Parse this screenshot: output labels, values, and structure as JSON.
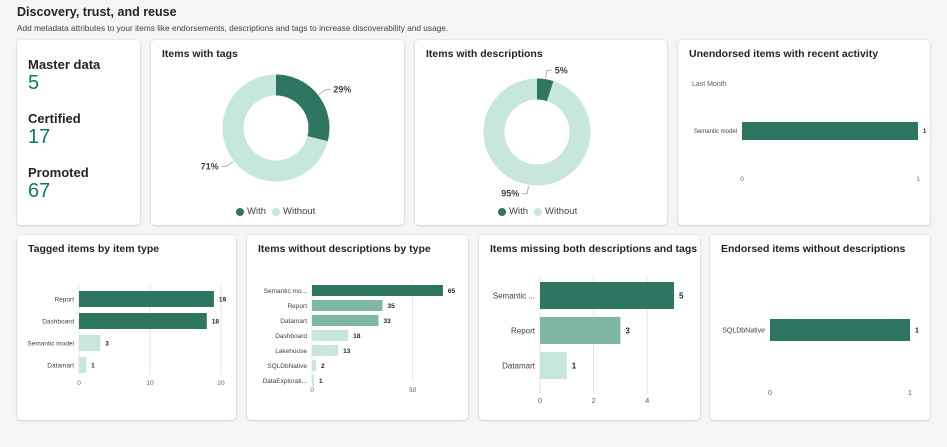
{
  "header": {
    "title": "Discovery, trust, and reuse",
    "subtitle": "Add metadata attributes to your items like endorsements, descriptions and tags to increase discoverability and usage."
  },
  "colors": {
    "dark": "#2e7562",
    "medium": "#7fb7a5",
    "light": "#c7e7dc",
    "axis": "#e0e0e0"
  },
  "stats": [
    {
      "label": "Master data",
      "value": "5"
    },
    {
      "label": "Certified",
      "value": "17"
    },
    {
      "label": "Promoted",
      "value": "67"
    }
  ],
  "cards": {
    "tags": {
      "title": "Items with tags"
    },
    "descriptions": {
      "title": "Items with descriptions"
    },
    "unendorsed": {
      "title": "Unendorsed items with recent activity",
      "subtitle": "Last Month"
    },
    "tagged_by_type": {
      "title": "Tagged items by item type"
    },
    "without_desc_by_type": {
      "title": "Items without descriptions by type"
    },
    "missing_both": {
      "title": "Items missing both descriptions and tags"
    },
    "endorsed_without_desc": {
      "title": "Endorsed items without descriptions"
    }
  },
  "legend": {
    "with": "With",
    "without": "Without"
  },
  "chart_data": [
    {
      "type": "pie",
      "title": "Items with tags",
      "categories": [
        "With",
        "Without"
      ],
      "values": [
        29,
        71
      ],
      "labels": [
        "29%",
        "71%"
      ]
    },
    {
      "type": "pie",
      "title": "Items with descriptions",
      "categories": [
        "With",
        "Without"
      ],
      "values": [
        5,
        95
      ],
      "labels": [
        "5%",
        "95%"
      ]
    },
    {
      "type": "bar",
      "orientation": "horizontal",
      "title": "Unendorsed items with recent activity",
      "subtitle": "Last Month",
      "categories": [
        "Semantic model"
      ],
      "values": [
        1
      ],
      "xlim": [
        0,
        1
      ],
      "ticks": [
        "0",
        "1"
      ]
    },
    {
      "type": "bar",
      "orientation": "horizontal",
      "title": "Tagged items by item type",
      "categories": [
        "Report",
        "Dashboard",
        "Semantic model",
        "Datamart"
      ],
      "values": [
        19,
        18,
        3,
        1
      ],
      "xlim": [
        0,
        20
      ],
      "ticks": [
        "0",
        "10",
        "20"
      ]
    },
    {
      "type": "bar",
      "orientation": "horizontal",
      "title": "Items without descriptions by type",
      "categories": [
        "Semantic mo...",
        "Report",
        "Datamart",
        "Dashboard",
        "Lakehouse",
        "SQLDbNative",
        "DataExplorati..."
      ],
      "values": [
        65,
        35,
        33,
        18,
        13,
        2,
        1
      ],
      "xlim": [
        0,
        70
      ],
      "ticks": [
        "0",
        "50"
      ]
    },
    {
      "type": "bar",
      "orientation": "horizontal",
      "title": "Items missing both descriptions and tags",
      "categories": [
        "Semantic ...",
        "Report",
        "Datamart"
      ],
      "values": [
        5,
        3,
        1
      ],
      "xlim": [
        0,
        5
      ],
      "ticks": [
        "0",
        "2",
        "4"
      ]
    },
    {
      "type": "bar",
      "orientation": "horizontal",
      "title": "Endorsed items without descriptions",
      "categories": [
        "SQLDbNative"
      ],
      "values": [
        1
      ],
      "xlim": [
        0,
        1
      ],
      "ticks": [
        "0",
        "1"
      ]
    }
  ]
}
